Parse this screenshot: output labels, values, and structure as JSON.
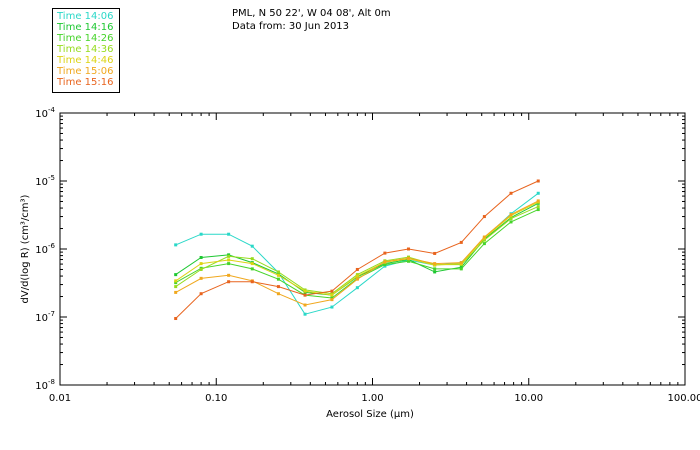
{
  "header": {
    "location": "PML, N 50 22', W 04 08', Alt 0m",
    "date": "Data from: 30 Jun 2013"
  },
  "chart_data": {
    "type": "line",
    "title": "PML, N 50 22', W 04 08', Alt 0m",
    "subtitle": "Data from: 30 Jun 2013",
    "xlabel": "Aerosol Size (µm)",
    "ylabel": "dV/d(log R) (cm³/cm³)",
    "xscale": "log",
    "yscale": "log",
    "xlim": [
      0.01,
      100
    ],
    "ylim": [
      1e-08,
      0.0001
    ],
    "xticks": [
      0.01,
      0.1,
      1,
      10,
      100
    ],
    "xtick_labels": [
      "0.01",
      "0.10",
      "1.00",
      "10.00",
      "100.00"
    ],
    "yticks": [
      1e-08,
      1e-07,
      1e-06,
      1e-05,
      0.0001
    ],
    "ytick_labels": [
      {
        "base": "10",
        "exp": "-8"
      },
      {
        "base": "10",
        "exp": "-7"
      },
      {
        "base": "10",
        "exp": "-6"
      },
      {
        "base": "10",
        "exp": "-5"
      },
      {
        "base": "10",
        "exp": "-4"
      }
    ],
    "legend_position": "top-left",
    "x": [
      0.055,
      0.08,
      0.12,
      0.17,
      0.25,
      0.37,
      0.55,
      0.8,
      1.2,
      1.7,
      2.5,
      3.7,
      5.2,
      7.7,
      11.5
    ],
    "series": [
      {
        "name": "Time 14:06",
        "color": "#2ad8c8",
        "values": [
          1.15e-06,
          1.65e-06,
          1.65e-06,
          1.1e-06,
          4.5e-07,
          1.1e-07,
          1.4e-07,
          2.7e-07,
          5.6e-07,
          6.9e-07,
          5.8e-07,
          6.3e-07,
          1.45e-06,
          3.3e-06,
          6.6e-06
        ]
      },
      {
        "name": "Time 14:16",
        "color": "#1ec832",
        "values": [
          4.2e-07,
          7.5e-07,
          8.2e-07,
          6.3e-07,
          4.3e-07,
          2.3e-07,
          2.1e-07,
          3.9e-07,
          6.1e-07,
          7e-07,
          4.6e-07,
          5.4e-07,
          1.4e-06,
          2.9e-06,
          4.7e-06
        ]
      },
      {
        "name": "Time 14:26",
        "color": "#46d42a",
        "values": [
          3.2e-07,
          5.2e-07,
          6.1e-07,
          5.1e-07,
          3.6e-07,
          2.1e-07,
          1.9e-07,
          3.7e-07,
          5.9e-07,
          6.6e-07,
          5.1e-07,
          5.1e-07,
          1.2e-06,
          2.5e-06,
          3.8e-06
        ]
      },
      {
        "name": "Time 14:36",
        "color": "#96dc1e",
        "values": [
          2.8e-07,
          5e-07,
          7.8e-07,
          7.2e-07,
          4.6e-07,
          2.5e-07,
          2.2e-07,
          4.2e-07,
          6.7e-07,
          7.6e-07,
          5.9e-07,
          5.9e-07,
          1.35e-06,
          2.8e-06,
          4.2e-06
        ]
      },
      {
        "name": "Time 14:46",
        "color": "#dcd414",
        "values": [
          3.4e-07,
          6.1e-07,
          6.9e-07,
          6.1e-07,
          4.1e-07,
          2.4e-07,
          2.1e-07,
          4e-07,
          6.4e-07,
          7.2e-07,
          5.8e-07,
          6.1e-07,
          1.45e-06,
          3.1e-06,
          4.9e-06
        ]
      },
      {
        "name": "Time 15:06",
        "color": "#f0a81e",
        "values": [
          2.3e-07,
          3.7e-07,
          4.1e-07,
          3.4e-07,
          2.2e-07,
          1.5e-07,
          1.8e-07,
          3.6e-07,
          6.5e-07,
          7.3e-07,
          6.1e-07,
          6.3e-07,
          1.5e-06,
          3.2e-06,
          5.1e-06
        ]
      },
      {
        "name": "Time 15:16",
        "color": "#e8641e",
        "values": [
          9.5e-08,
          2.2e-07,
          3.3e-07,
          3.3e-07,
          2.8e-07,
          2.1e-07,
          2.4e-07,
          5e-07,
          8.7e-07,
          1e-06,
          8.6e-07,
          1.25e-06,
          3e-06,
          6.6e-06,
          1e-05
        ]
      }
    ]
  }
}
